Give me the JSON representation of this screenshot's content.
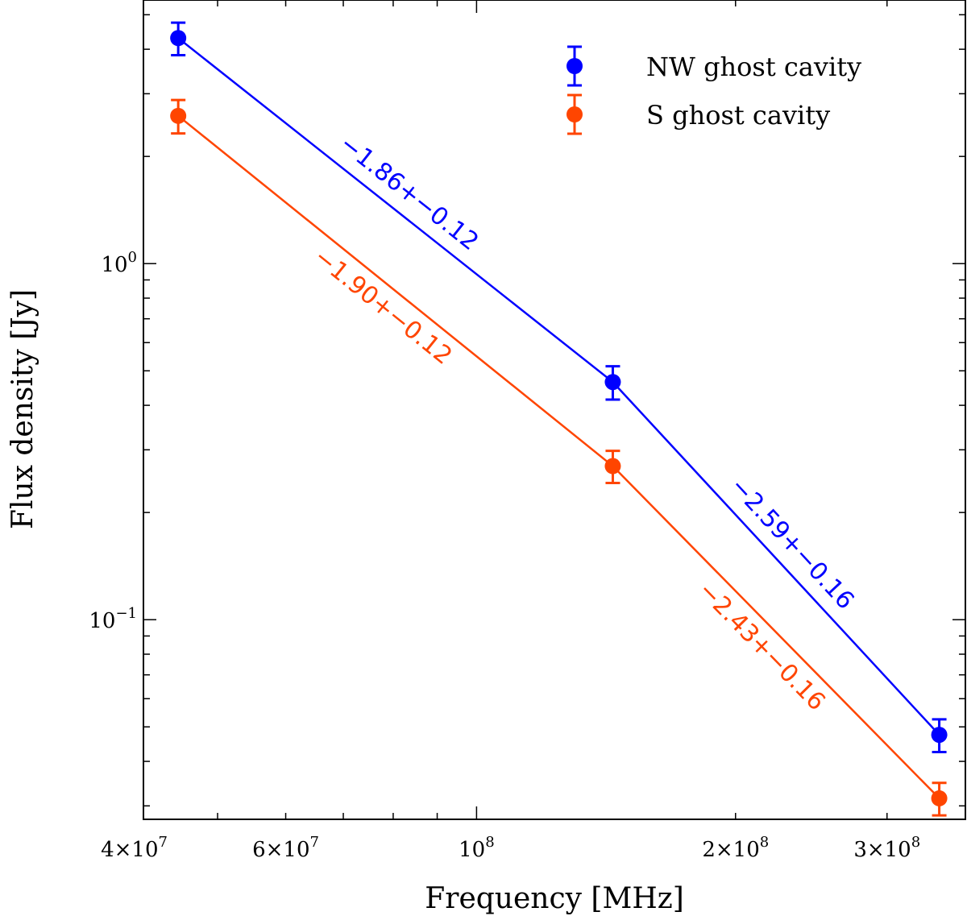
{
  "chart_data": {
    "type": "scatter",
    "title": "",
    "xlabel": "Frequency [MHz]",
    "ylabel": "Flux density [Jy]",
    "xscale": "log",
    "yscale": "log",
    "xlim": [
      41000000,
      370000000
    ],
    "ylim": [
      0.0275,
      5.5
    ],
    "grid": false,
    "legend_position": "top-right",
    "x_ticks": [
      {
        "value": 40000000,
        "label": "4×10",
        "exp": "7"
      },
      {
        "value": 60000000,
        "label": "6×10",
        "exp": "7"
      },
      {
        "value": 100000000,
        "label": "10",
        "exp": "8"
      },
      {
        "value": 200000000,
        "label": "2×10",
        "exp": "8"
      },
      {
        "value": 300000000,
        "label": "3×10",
        "exp": "8"
      }
    ],
    "y_ticks": [
      {
        "value": 1.0,
        "label": "10",
        "exp": "0"
      },
      {
        "value": 0.1,
        "label": "10",
        "exp": "−1"
      }
    ],
    "series": [
      {
        "name": "NW ghost cavity",
        "color": "#0000ff",
        "x": [
          45000000,
          144000000,
          345000000
        ],
        "y": [
          4.3,
          0.465,
          0.0475
        ],
        "y_err_low": [
          0.45,
          0.05,
          0.005
        ],
        "y_err_high": [
          0.45,
          0.05,
          0.005
        ],
        "segment_labels": [
          "−1.86+−0.12",
          "−2.59+−0.16"
        ]
      },
      {
        "name": "S ghost cavity",
        "color": "#ff4500",
        "x": [
          45000000,
          144000000,
          345000000
        ],
        "y": [
          2.6,
          0.27,
          0.0315
        ],
        "y_err_low": [
          0.28,
          0.028,
          0.0033
        ],
        "y_err_high": [
          0.28,
          0.028,
          0.0033
        ],
        "segment_labels": [
          "−1.90+−0.12",
          "−2.43+−0.16"
        ]
      }
    ]
  }
}
